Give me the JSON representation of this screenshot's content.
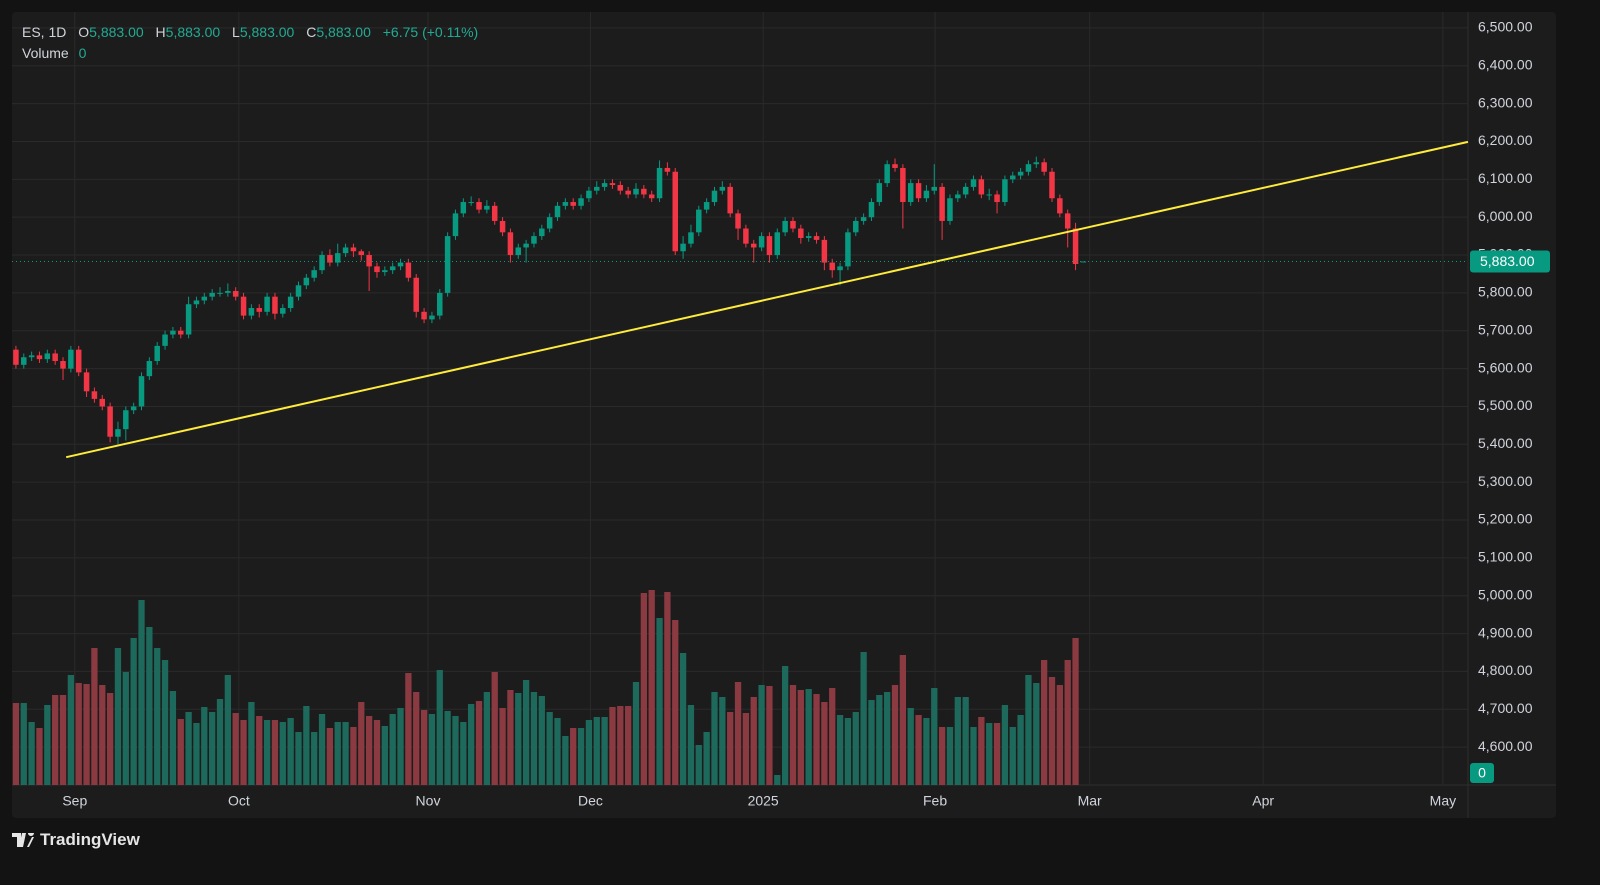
{
  "chart_data": {
    "type": "candlestick",
    "legend": {
      "symbol": "ES, 1D",
      "items": [
        {
          "key": "O",
          "value": 5883,
          "label": "5,883.00"
        },
        {
          "key": "H",
          "value": 5883,
          "label": "5,883.00"
        },
        {
          "key": "L",
          "value": 5883,
          "label": "5,883.00"
        },
        {
          "key": "C",
          "value": 5883,
          "label": "5,883.00"
        }
      ],
      "change": {
        "value": 6.75,
        "label": "+6.75 (+0.11%)",
        "percent": 0.11
      },
      "volume_name": "Volume"
    },
    "colors": {
      "up": "#089981",
      "down": "#f23645",
      "volume_up": "#1d6a5c",
      "volume_down": "#8c3a42",
      "trendline": "#ffeb3b",
      "grid": "#2a2a2a"
    },
    "xlim": [
      -0.5,
      185
    ],
    "xticks": [
      {
        "value": 7.5,
        "label": "Sep"
      },
      {
        "value": 28.4,
        "label": "Oct"
      },
      {
        "value": 52.5,
        "label": "Nov"
      },
      {
        "value": 73.2,
        "label": "Dec"
      },
      {
        "value": 95.2,
        "label": "2025"
      },
      {
        "value": 117.1,
        "label": "Feb"
      },
      {
        "value": 136.8,
        "label": "Mar"
      },
      {
        "value": 158.9,
        "label": "Apr"
      },
      {
        "value": 181.8,
        "label": "May"
      }
    ],
    "ylim": [
      4500,
      6542
    ],
    "yticks": [
      {
        "value": 4600,
        "label": "4,600.00"
      },
      {
        "value": 4700,
        "label": "4,700.00"
      },
      {
        "value": 4800,
        "label": "4,800.00"
      },
      {
        "value": 4900,
        "label": "4,900.00"
      },
      {
        "value": 5000,
        "label": "5,000.00"
      },
      {
        "value": 5100,
        "label": "5,100.00"
      },
      {
        "value": 5200,
        "label": "5,200.00"
      },
      {
        "value": 5300,
        "label": "5,300.00"
      },
      {
        "value": 5400,
        "label": "5,400.00"
      },
      {
        "value": 5500,
        "label": "5,500.00"
      },
      {
        "value": 5600,
        "label": "5,600.00"
      },
      {
        "value": 5700,
        "label": "5,700.00"
      },
      {
        "value": 5800,
        "label": "5,800.00"
      },
      {
        "value": 5900,
        "label": "5,900.00"
      },
      {
        "value": 6000,
        "label": "6,000.00"
      },
      {
        "value": 6100,
        "label": "6,100.00"
      },
      {
        "value": 6200,
        "label": "6,200.00"
      },
      {
        "value": 6300,
        "label": "6,300.00"
      },
      {
        "value": 6400,
        "label": "6,400.00"
      },
      {
        "value": 6500,
        "label": "6,500.00"
      }
    ],
    "grid": true,
    "last_price": {
      "value": 5883,
      "label": "5,883.00"
    },
    "volume_ylim": [
      0,
      773
    ],
    "open": [
      5650,
      5610,
      5630,
      5635,
      5625,
      5640,
      5620,
      5600,
      5650,
      5590,
      5540,
      5520,
      5500,
      5420,
      5440,
      5490,
      5500,
      5580,
      5620,
      5660,
      5690,
      5700,
      5690,
      5770,
      5780,
      5790,
      5800,
      5800,
      5805,
      5790,
      5740,
      5760,
      5750,
      5790,
      5745,
      5760,
      5790,
      5820,
      5840,
      5860,
      5900,
      5880,
      5905,
      5920,
      5910,
      5900,
      5870,
      5855,
      5860,
      5870,
      5880,
      5840,
      5750,
      5730,
      5740,
      5800,
      5950,
      6010,
      6040,
      6040,
      6020,
      6030,
      5990,
      5960,
      5900,
      5920,
      5930,
      5950,
      5970,
      6000,
      6030,
      6040,
      6030,
      6050,
      6070,
      6080,
      6090,
      6085,
      6070,
      6060,
      6075,
      6060,
      6050,
      6130,
      6120,
      5910,
      5930,
      5960,
      6020,
      6040,
      6070,
      6080,
      6010,
      5970,
      5930,
      5920,
      5950,
      5900,
      5960,
      5990,
      5970,
      5945,
      5950,
      5940,
      5880,
      5860,
      5870,
      5960,
      5990,
      6000,
      6040,
      6090,
      6140,
      6130,
      6040,
      6090,
      6050,
      6070,
      6080,
      5990,
      6050,
      6060,
      6080,
      6100,
      6060,
      6060,
      6040,
      6100,
      6110,
      6120,
      6140,
      6145,
      6120,
      6050,
      6010,
      5970,
      5883
    ],
    "high": [
      5660,
      5640,
      5645,
      5645,
      5650,
      5650,
      5630,
      5660,
      5660,
      5600,
      5550,
      5530,
      5510,
      5460,
      5500,
      5510,
      5590,
      5630,
      5670,
      5700,
      5710,
      5710,
      5790,
      5790,
      5800,
      5810,
      5815,
      5825,
      5815,
      5800,
      5770,
      5770,
      5800,
      5800,
      5770,
      5800,
      5830,
      5850,
      5870,
      5910,
      5915,
      5930,
      5930,
      5930,
      5915,
      5910,
      5880,
      5870,
      5880,
      5890,
      5890,
      5850,
      5760,
      5750,
      5810,
      5960,
      6020,
      6050,
      6055,
      6050,
      6045,
      6040,
      6000,
      5970,
      5930,
      5940,
      5960,
      5980,
      6010,
      6040,
      6050,
      6050,
      6060,
      6080,
      6095,
      6100,
      6100,
      6095,
      6080,
      6090,
      6085,
      6070,
      6150,
      6145,
      6130,
      5950,
      5980,
      6030,
      6050,
      6080,
      6095,
      6090,
      6020,
      5980,
      5940,
      5960,
      5960,
      5970,
      6000,
      6000,
      5980,
      5960,
      5960,
      5950,
      5890,
      5880,
      5970,
      6000,
      6010,
      6050,
      6100,
      6150,
      6155,
      6140,
      6100,
      6100,
      6085,
      6140,
      6090,
      6060,
      6070,
      6090,
      6110,
      6110,
      6075,
      6070,
      6110,
      6120,
      6130,
      6150,
      6160,
      6155,
      6130,
      6060,
      6020,
      5985,
      5883
    ],
    "low": [
      5600,
      5600,
      5620,
      5615,
      5615,
      5610,
      5570,
      5590,
      5580,
      5525,
      5510,
      5490,
      5405,
      5400,
      5410,
      5480,
      5490,
      5570,
      5610,
      5650,
      5680,
      5680,
      5680,
      5760,
      5770,
      5780,
      5790,
      5790,
      5780,
      5730,
      5730,
      5735,
      5740,
      5730,
      5735,
      5750,
      5780,
      5810,
      5830,
      5850,
      5870,
      5870,
      5895,
      5895,
      5885,
      5805,
      5840,
      5845,
      5850,
      5860,
      5830,
      5735,
      5720,
      5720,
      5730,
      5790,
      5940,
      6000,
      6030,
      6010,
      6010,
      5980,
      5950,
      5880,
      5890,
      5880,
      5920,
      5940,
      5960,
      5990,
      6020,
      6020,
      6020,
      6040,
      6060,
      6070,
      6075,
      6060,
      6050,
      6050,
      6050,
      6040,
      6040,
      6110,
      5900,
      5890,
      5920,
      5950,
      6010,
      6030,
      6060,
      6000,
      5940,
      5920,
      5880,
      5910,
      5880,
      5890,
      5950,
      5960,
      5930,
      5935,
      5930,
      5860,
      5840,
      5820,
      5860,
      5950,
      5980,
      5990,
      6030,
      6080,
      6120,
      5970,
      6030,
      6040,
      6040,
      6060,
      5940,
      5980,
      6040,
      6050,
      6070,
      6050,
      6045,
      6010,
      6030,
      6090,
      6100,
      6110,
      6130,
      6110,
      6040,
      6000,
      5920,
      5860,
      5883
    ],
    "close": [
      5610,
      5630,
      5635,
      5625,
      5640,
      5620,
      5600,
      5650,
      5590,
      5540,
      5520,
      5500,
      5420,
      5440,
      5490,
      5500,
      5580,
      5620,
      5660,
      5690,
      5700,
      5690,
      5770,
      5780,
      5790,
      5800,
      5800,
      5805,
      5790,
      5740,
      5760,
      5750,
      5790,
      5745,
      5760,
      5790,
      5820,
      5840,
      5860,
      5900,
      5880,
      5905,
      5920,
      5910,
      5900,
      5870,
      5855,
      5860,
      5870,
      5880,
      5840,
      5750,
      5730,
      5740,
      5800,
      5950,
      6010,
      6040,
      6040,
      6020,
      6030,
      5990,
      5960,
      5900,
      5920,
      5930,
      5950,
      5970,
      6000,
      6030,
      6040,
      6030,
      6050,
      6070,
      6080,
      6090,
      6085,
      6070,
      6060,
      6075,
      6060,
      6050,
      6130,
      6120,
      5910,
      5930,
      5960,
      6020,
      6040,
      6070,
      6080,
      6010,
      5970,
      5930,
      5920,
      5950,
      5900,
      5960,
      5990,
      5970,
      5945,
      5950,
      5940,
      5880,
      5860,
      5870,
      5960,
      5990,
      6000,
      6040,
      6090,
      6140,
      6130,
      6040,
      6090,
      6050,
      6070,
      6080,
      5990,
      6050,
      6060,
      6080,
      6100,
      6060,
      6060,
      6040,
      6100,
      6110,
      6120,
      6140,
      6145,
      6120,
      6050,
      6010,
      5970,
      5876.25,
      5883
    ],
    "volume": [
      82,
      82,
      63,
      57,
      80,
      90,
      90,
      110,
      102,
      101,
      137,
      100,
      92,
      137,
      113,
      147,
      185,
      158,
      137,
      125,
      94,
      66,
      73,
      62,
      78,
      73,
      86,
      110,
      72,
      65,
      83,
      69,
      65,
      65,
      63,
      67,
      53,
      79,
      53,
      71,
      57,
      63,
      63,
      58,
      83,
      69,
      65,
      59,
      71,
      77,
      112,
      93,
      75,
      71,
      115,
      74,
      69,
      63,
      81,
      84,
      93,
      113,
      77,
      95,
      92,
      105,
      93,
      89,
      73,
      67,
      49,
      57,
      57,
      65,
      68,
      68,
      78,
      79,
      79,
      103,
      192,
      195,
      167,
      193,
      165,
      132,
      80,
      40,
      53,
      93,
      88,
      73,
      103,
      72,
      88,
      100,
      99,
      10,
      119,
      100,
      95,
      96,
      91,
      83,
      97,
      70,
      67,
      73,
      133,
      85,
      90,
      93,
      100,
      130,
      77,
      70,
      67,
      97,
      58,
      58,
      88,
      88,
      58,
      68,
      62,
      62,
      80,
      58,
      70,
      110,
      102,
      125,
      108,
      100,
      125,
      147,
      0
    ],
    "trendline": {
      "x": [
        6.4,
        185
      ],
      "y": [
        5366,
        6199
      ]
    },
    "footer": "TradingView"
  }
}
